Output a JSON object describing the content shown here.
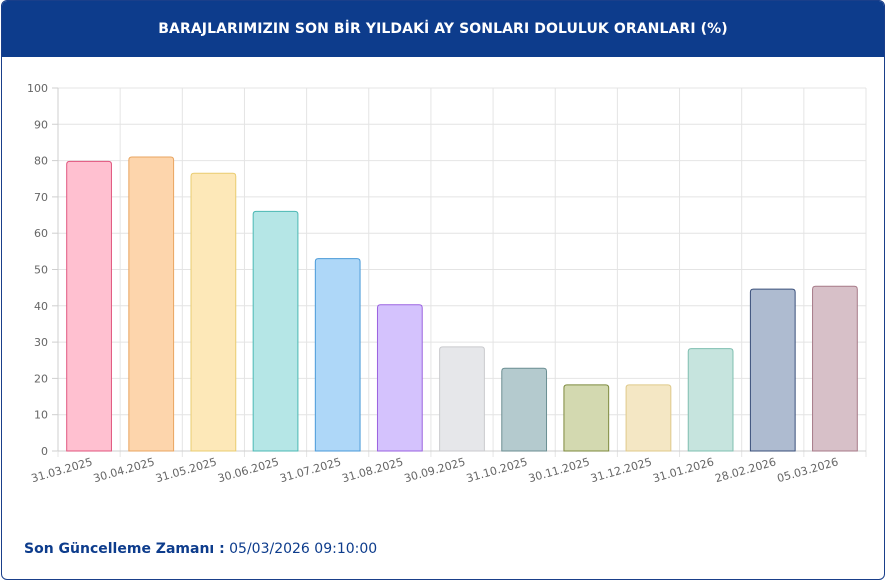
{
  "header": {
    "title": "BARAJLARIMIZIN SON BİR YILDAKİ AY SONLARI DOLULUK ORANLARI (%)"
  },
  "chart_data": {
    "type": "bar",
    "title": "BARAJLARIMIZIN SON BİR YILDAKİ AY SONLARI DOLULUK ORANLARI (%)",
    "categories": [
      "31.03.2025",
      "30.04.2025",
      "31.05.2025",
      "30.06.2025",
      "31.07.2025",
      "31.08.2025",
      "30.09.2025",
      "31.10.2025",
      "30.11.2025",
      "31.12.2025",
      "31.01.2026",
      "28.02.2026",
      "05.03.2026"
    ],
    "values": [
      79.8,
      81.0,
      76.5,
      66.0,
      53.0,
      40.3,
      28.7,
      22.8,
      18.2,
      18.2,
      28.2,
      44.6,
      45.4
    ],
    "yticks": [
      0,
      10,
      20,
      30,
      40,
      50,
      60,
      70,
      80,
      90,
      100
    ],
    "ylim": [
      0,
      100
    ],
    "grid": true,
    "colors": {
      "fill": [
        "#ffc0d0",
        "#fdd5ac",
        "#fde8b8",
        "#b5e6e6",
        "#aed7f8",
        "#d4c2fd",
        "#e6e7ea",
        "#b4cace",
        "#d3d9b0",
        "#f4e7c4",
        "#c6e4de",
        "#aebbd0",
        "#d7c0c8"
      ],
      "stroke": [
        "#e0557e",
        "#e9a560",
        "#e9cc70",
        "#4cb8b4",
        "#4a9ad8",
        "#9a62e0",
        "#c9cacd",
        "#6b8e92",
        "#7e8a3e",
        "#dfc98a",
        "#7fbfb0",
        "#3a4f7a",
        "#a77a88"
      ]
    }
  },
  "footer": {
    "label": "Son Güncelleme Zamanı :",
    "value": "05/03/2026 09:10:00"
  }
}
